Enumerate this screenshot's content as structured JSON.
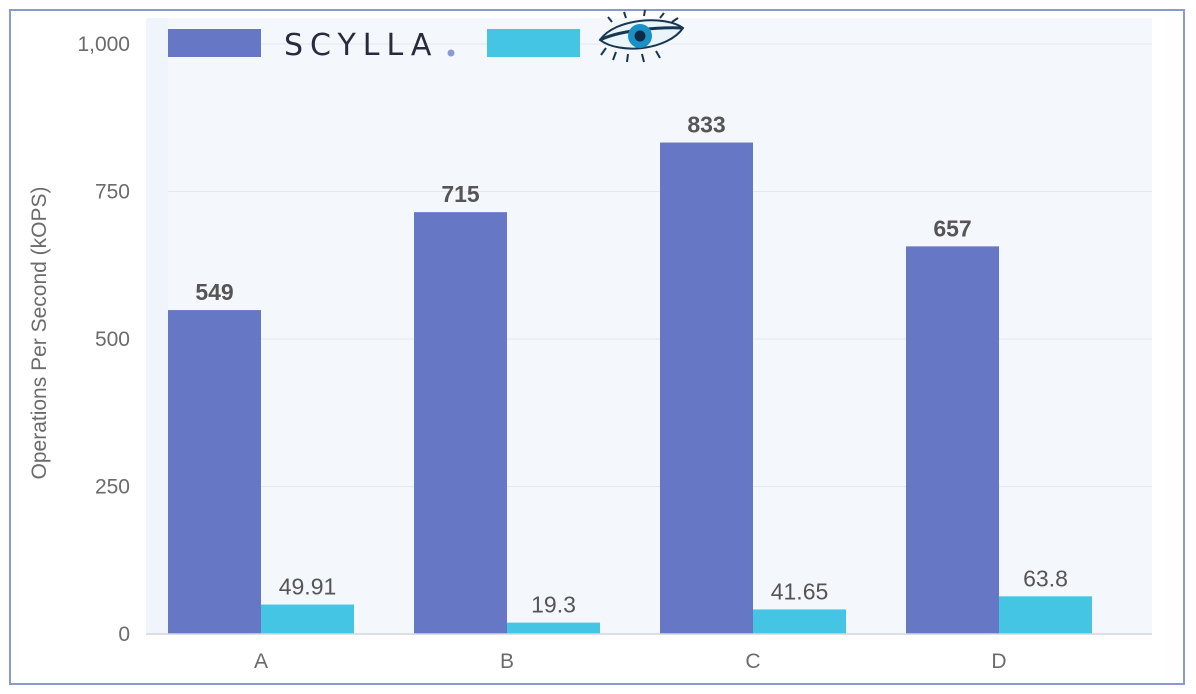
{
  "chart_data": {
    "type": "bar",
    "categories": [
      "A",
      "B",
      "C",
      "D"
    ],
    "series": [
      {
        "name": "SCYLLA",
        "values": [
          549,
          715,
          833,
          657
        ],
        "color": "#6677c6"
      },
      {
        "name": "",
        "values": [
          49.91,
          19.3,
          41.65,
          63.8
        ],
        "color": "#44c5e3"
      }
    ],
    "value_labels": [
      [
        "549",
        "715",
        "833",
        "657"
      ],
      [
        "49.91",
        "19.3",
        "41.65",
        "63.8"
      ]
    ],
    "ylabel": "Operations Per Second  (kOPS)",
    "xlabel": "",
    "ylim": [
      0,
      1000
    ],
    "yticks": [
      0,
      250,
      500,
      750,
      1000
    ],
    "ytick_labels": [
      "0",
      "250",
      "500",
      "750",
      "1,000"
    ],
    "grid": true,
    "legend_position": "top-left",
    "legend_icons": [
      "scylla-logo-dot",
      "cassandra-eye-logo-icon"
    ]
  }
}
